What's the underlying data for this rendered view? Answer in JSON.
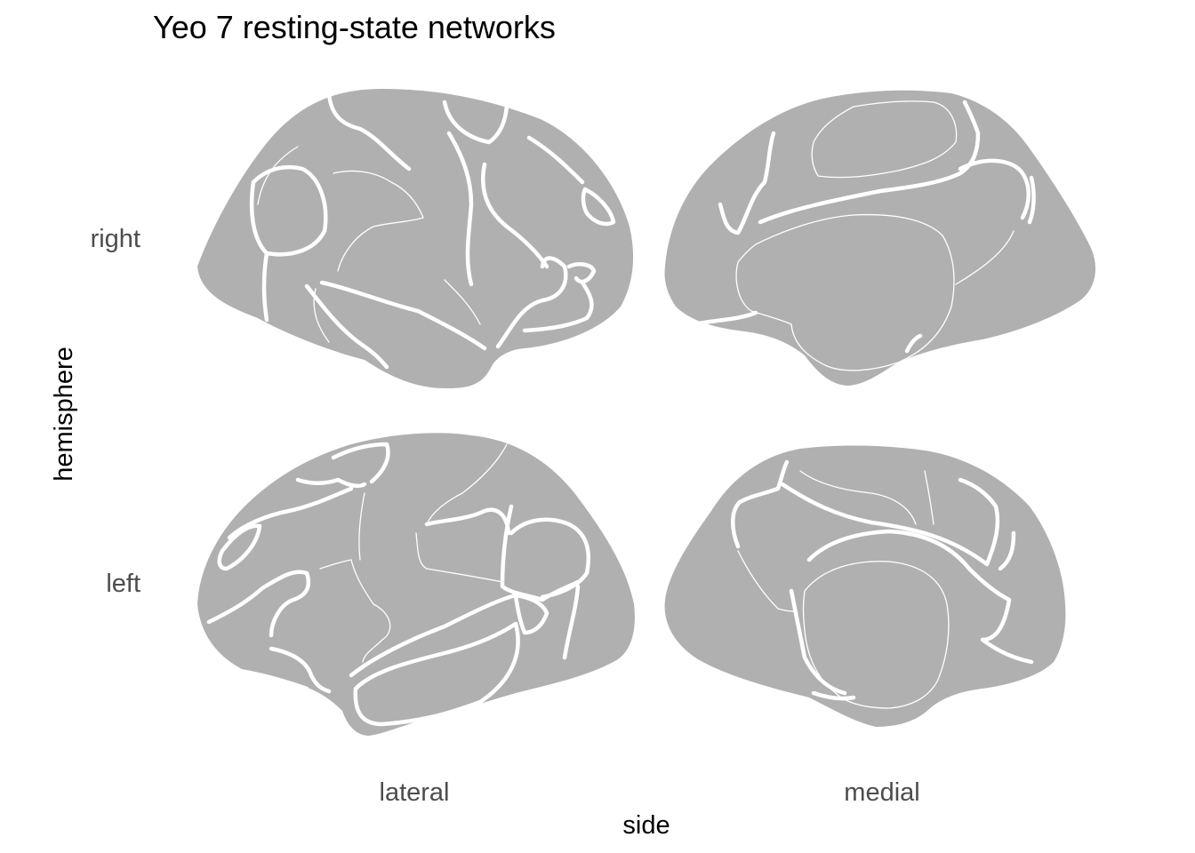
{
  "chart_data": {
    "type": "brain-atlas",
    "title": "Yeo 7 resting-state networks",
    "xlabel": "side",
    "ylabel": "hemisphere",
    "columns": [
      "lateral",
      "medial"
    ],
    "rows": [
      "right",
      "left"
    ],
    "legend": "none",
    "grid": false,
    "colors": {
      "region_fill": "#b0b0b0",
      "region_border": "#ffffff",
      "row_col_labels": "#4d4d4d",
      "text": "#000000",
      "background": "#ffffff"
    },
    "panels": [
      {
        "hemisphere": "right",
        "side": "lateral"
      },
      {
        "hemisphere": "right",
        "side": "medial"
      },
      {
        "hemisphere": "left",
        "side": "lateral"
      },
      {
        "hemisphere": "left",
        "side": "medial"
      }
    ]
  }
}
